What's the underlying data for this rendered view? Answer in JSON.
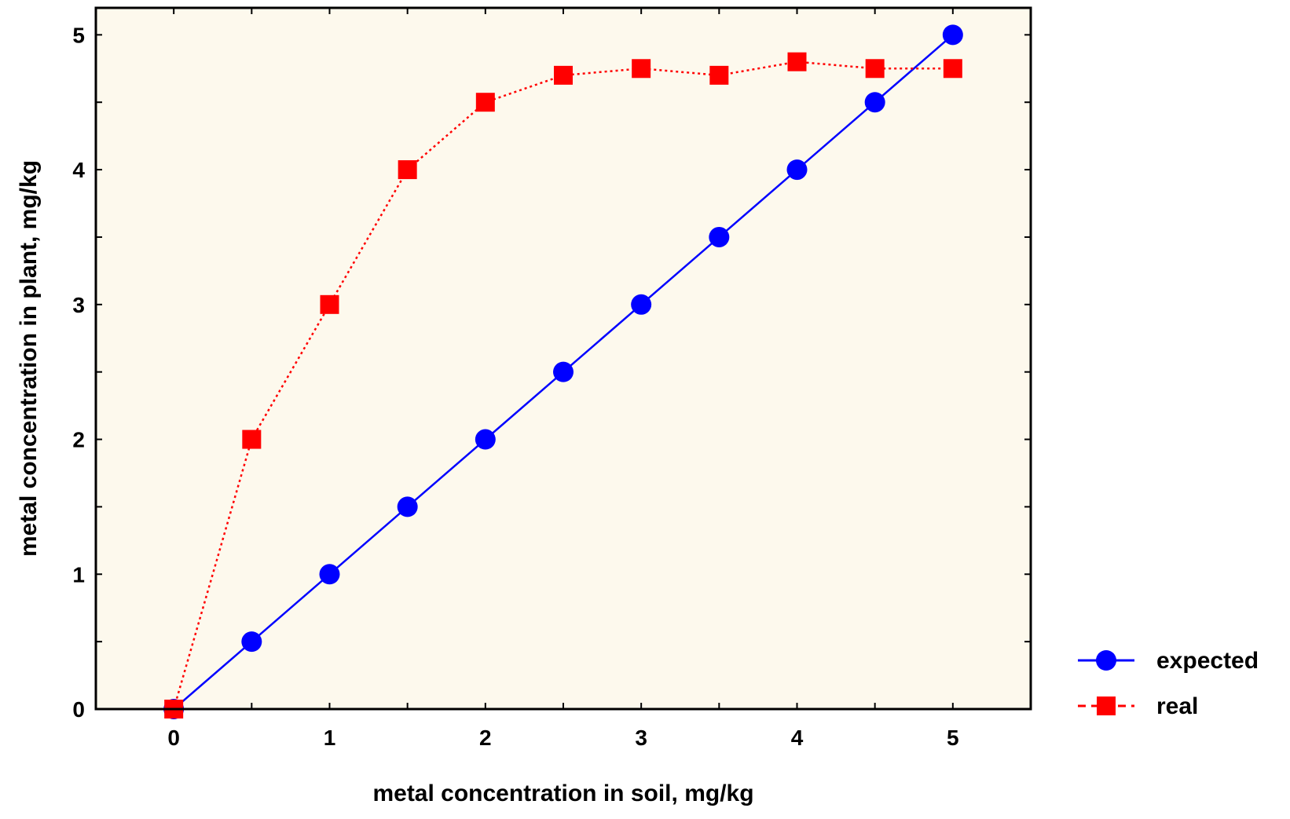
{
  "chart_data": {
    "type": "line",
    "xlabel": "metal concentration in soil, mg/kg",
    "ylabel": "metal concentration in plant, mg/kg",
    "xlim": [
      -0.5,
      5.5
    ],
    "ylim": [
      0,
      5.2
    ],
    "xticks": [
      "0",
      "1",
      "2",
      "3",
      "4",
      "5"
    ],
    "yticks": [
      "0",
      "1",
      "2",
      "3",
      "4",
      "5"
    ],
    "grid": false,
    "legend_position": "bottom-right, outside plot",
    "plot_background": "#fdf9ed",
    "series": [
      {
        "name": "expected",
        "color": "#0000ff",
        "marker": "circle",
        "line_style": "solid",
        "x": [
          0,
          0.5,
          1,
          1.5,
          2,
          2.5,
          3,
          3.5,
          4,
          4.5,
          5
        ],
        "y": [
          0,
          0.5,
          1,
          1.5,
          2,
          2.5,
          3,
          3.5,
          4,
          4.5,
          5
        ]
      },
      {
        "name": "real",
        "color": "#ff0000",
        "marker": "square",
        "line_style": "dotted",
        "x": [
          0,
          0.5,
          1,
          1.5,
          2,
          2.5,
          3,
          3.5,
          4,
          4.5,
          5
        ],
        "y": [
          0,
          2,
          3,
          4,
          4.5,
          4.7,
          4.75,
          4.7,
          4.8,
          4.75,
          4.75
        ]
      }
    ]
  }
}
